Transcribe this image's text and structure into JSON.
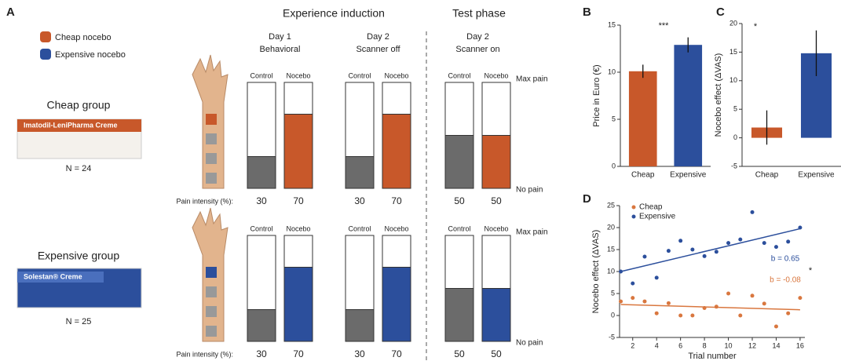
{
  "panel_a": {
    "label": "A",
    "legend": [
      {
        "label": "Cheap nocebo",
        "color": "#c8582a"
      },
      {
        "label": "Expensive nocebo",
        "color": "#2c4f9c"
      }
    ],
    "phases": [
      "Experience induction",
      "Test phase"
    ],
    "days": [
      {
        "day": "Day 1",
        "condition": "Behavioral"
      },
      {
        "day": "Day 2",
        "condition": "Scanner off"
      },
      {
        "day": "Day 2",
        "condition": "Scanner on"
      }
    ],
    "bar_labels": [
      "Control",
      "Nocebo"
    ],
    "max_label": "Max pain",
    "min_label": "No pain",
    "intensity_label": "Pain intensity (%):",
    "control_color": "#6b6b6b",
    "ylim": [
      0,
      100
    ],
    "groups": [
      {
        "name": "Cheap group",
        "n": "N = 24",
        "product": "Imatodil-LeniPharma Creme",
        "color": "#c8582a",
        "values": [
          30,
          70,
          30,
          70,
          50,
          50
        ]
      },
      {
        "name": "Expensive group",
        "n": "N = 25",
        "product": "Solestan® Creme",
        "color": "#2c4f9c",
        "values": [
          30,
          70,
          30,
          70,
          50,
          50
        ]
      }
    ]
  },
  "chart_data": [
    {
      "type": "bar",
      "label": "B",
      "ylabel": "Price in Euro (€)",
      "categories": [
        "Cheap",
        "Expensive"
      ],
      "values": [
        10.1,
        12.9
      ],
      "errors": [
        0.7,
        0.8
      ],
      "colors": [
        "#c8582a",
        "#2c4f9c"
      ],
      "ylim": [
        0,
        15
      ],
      "yticks": [
        0,
        5,
        10,
        15
      ],
      "annotation": "***"
    },
    {
      "type": "bar",
      "label": "C",
      "ylabel": "Nocebo effect (ΔVAS)",
      "categories": [
        "Cheap",
        "Expensive"
      ],
      "values": [
        1.8,
        14.8
      ],
      "errors": [
        3,
        4
      ],
      "colors": [
        "#c8582a",
        "#2c4f9c"
      ],
      "ylim": [
        -5,
        20
      ],
      "yticks": [
        -5,
        0,
        5,
        10,
        15,
        20
      ],
      "annotation": "*"
    },
    {
      "type": "scatter",
      "label": "D",
      "xlabel": "Trial number",
      "ylabel": "Nocebo effect (ΔVAS)",
      "x": [
        1,
        2,
        3,
        4,
        5,
        6,
        7,
        8,
        9,
        10,
        11,
        12,
        13,
        14,
        15,
        16
      ],
      "series": [
        {
          "name": "Cheap",
          "color": "#d9773f",
          "values": [
            3.2,
            4,
            3.2,
            0.5,
            2.8,
            0,
            0,
            1.7,
            2,
            5,
            0,
            4.5,
            2.7,
            -2.5,
            0.5,
            4
          ],
          "fit": {
            "x": [
              1,
              16
            ],
            "values": [
              2.5,
              1.3
            ]
          },
          "slope_label": "b = -0.08"
        },
        {
          "name": "Expensive",
          "color": "#2c4f9c",
          "values": [
            10,
            7.3,
            13.4,
            8.6,
            14.7,
            17,
            15,
            13.5,
            14.5,
            16.5,
            17.3,
            23.5,
            16.5,
            15.6,
            16.8,
            20
          ],
          "fit": {
            "x": [
              1,
              16
            ],
            "values": [
              10,
              19.75
            ]
          },
          "slope_label": "b = 0.65"
        }
      ],
      "xlim": [
        0.9,
        16.4
      ],
      "xticks": [
        2,
        4,
        6,
        8,
        10,
        12,
        14,
        16
      ],
      "ylim": [
        -5,
        25
      ],
      "yticks": [
        -5,
        0,
        5,
        10,
        15,
        20,
        25
      ],
      "annotation": "*"
    }
  ]
}
